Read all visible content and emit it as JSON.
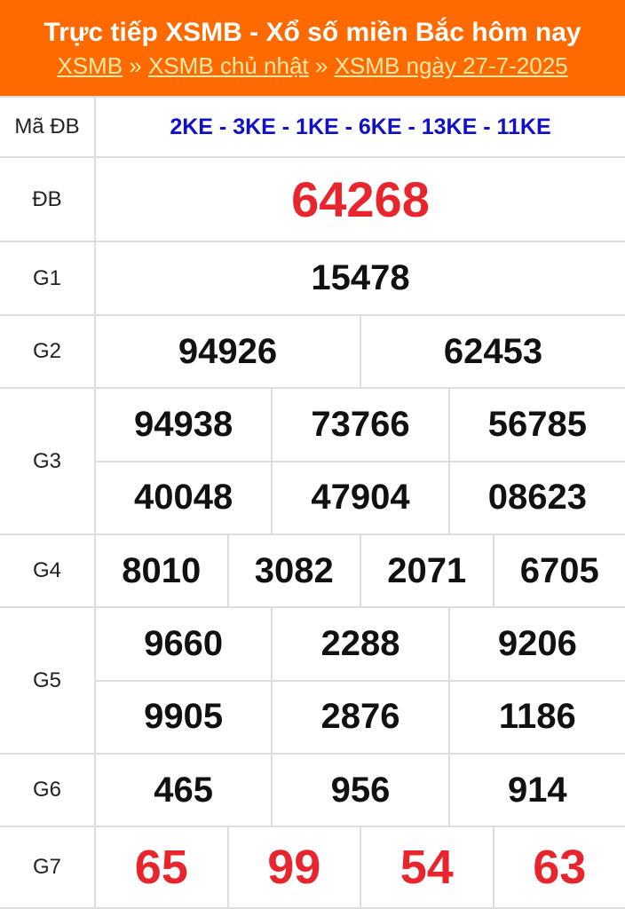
{
  "header": {
    "title": "Trực tiếp XSMB - Xổ số miền Bắc hôm nay",
    "breadcrumb": [
      "XSMB",
      "XSMB chủ nhật",
      "XSMB ngày 27-7-2025"
    ],
    "separator": "»"
  },
  "colors": {
    "header_bg": "#ff6a00",
    "code_blue": "#1010c8",
    "highlight_red": "#e8242c"
  },
  "rows": [
    {
      "label": "Mã ĐB",
      "values": [
        [
          "2KE - 3KE - 1KE - 6KE - 13KE - 11KE"
        ]
      ]
    },
    {
      "label": "ĐB",
      "values": [
        [
          "64268"
        ]
      ]
    },
    {
      "label": "G1",
      "values": [
        [
          "15478"
        ]
      ]
    },
    {
      "label": "G2",
      "values": [
        [
          "94926",
          "62453"
        ]
      ]
    },
    {
      "label": "G3",
      "values": [
        [
          "94938",
          "73766",
          "56785"
        ],
        [
          "40048",
          "47904",
          "08623"
        ]
      ]
    },
    {
      "label": "G4",
      "values": [
        [
          "8010",
          "3082",
          "2071",
          "6705"
        ]
      ]
    },
    {
      "label": "G5",
      "values": [
        [
          "9660",
          "2288",
          "9206"
        ],
        [
          "9905",
          "2876",
          "1186"
        ]
      ]
    },
    {
      "label": "G6",
      "values": [
        [
          "465",
          "956",
          "914"
        ]
      ]
    },
    {
      "label": "G7",
      "values": [
        [
          "65",
          "99",
          "54",
          "63"
        ]
      ]
    }
  ]
}
